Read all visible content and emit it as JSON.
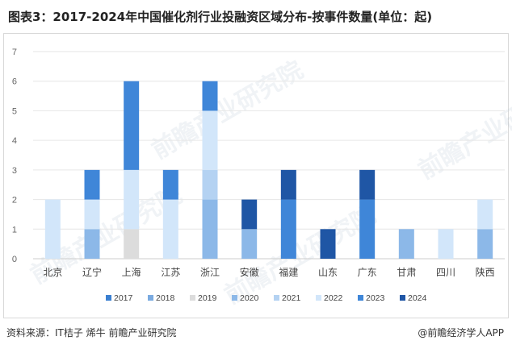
{
  "title": "图表3：2017-2024年中国催化剂行业投融资区域分布-按事件数量(单位：起)",
  "source": "资料来源：IT桔子 烯牛 前瞻产业研究院",
  "brand": "@前瞻经济学人APP",
  "watermark": "前瞻产业研究院",
  "chart_data": {
    "type": "bar",
    "stacked": true,
    "categories": [
      "北京",
      "辽宁",
      "上海",
      "江苏",
      "浙江",
      "安徽",
      "福建",
      "山东",
      "广东",
      "甘肃",
      "四川",
      "陕西"
    ],
    "series": [
      {
        "name": "2017",
        "color": "#3a7fd0",
        "values": [
          0,
          0,
          0,
          0,
          0,
          0,
          0,
          0,
          0,
          0,
          0,
          0
        ]
      },
      {
        "name": "2018",
        "color": "#7aaae0",
        "values": [
          0,
          0,
          0,
          0,
          0,
          0,
          0,
          0,
          0,
          0,
          0,
          0
        ]
      },
      {
        "name": "2019",
        "color": "#dcdcdc",
        "values": [
          0,
          0,
          1,
          0,
          0,
          0,
          0,
          0,
          0,
          0,
          0,
          0
        ]
      },
      {
        "name": "2020",
        "color": "#8cb8e8",
        "values": [
          0,
          1,
          0,
          0,
          2,
          1,
          0,
          0,
          0,
          1,
          0,
          1
        ]
      },
      {
        "name": "2021",
        "color": "#b4d2f2",
        "values": [
          0,
          0,
          0,
          0,
          1,
          0,
          0,
          0,
          0,
          0,
          0,
          0
        ]
      },
      {
        "name": "2022",
        "color": "#d2e6fa",
        "values": [
          2,
          1,
          2,
          2,
          2,
          0,
          0,
          0,
          0,
          0,
          1,
          1
        ]
      },
      {
        "name": "2023",
        "color": "#3f86d8",
        "values": [
          0,
          1,
          3,
          1,
          1,
          0,
          2,
          0,
          2,
          0,
          0,
          0
        ]
      },
      {
        "name": "2024",
        "color": "#1f56a5",
        "values": [
          0,
          0,
          0,
          0,
          0,
          1,
          1,
          1,
          1,
          0,
          0,
          0
        ]
      }
    ],
    "ylim": [
      0,
      7
    ],
    "yticks": [
      0,
      1,
      2,
      3,
      4,
      5,
      6,
      7
    ],
    "grid": true,
    "legend_position": "bottom"
  }
}
